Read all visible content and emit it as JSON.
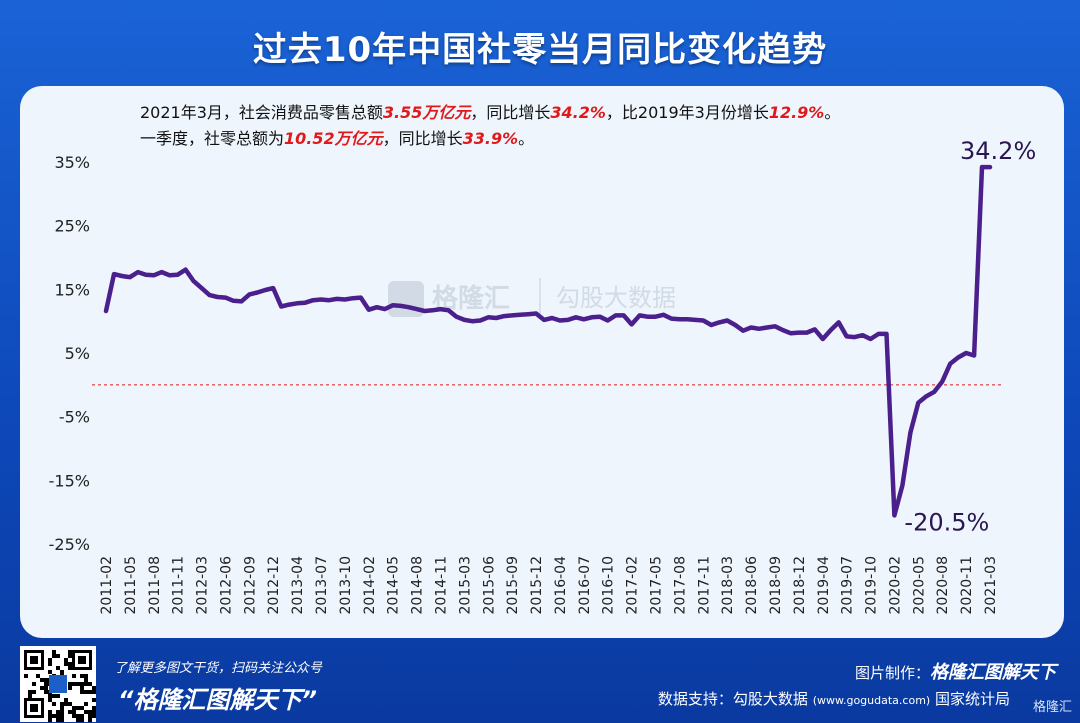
{
  "title": "过去10年中国社零当月同比变化趋势",
  "notes": {
    "line1": {
      "p1": "2021年3月，社会消费品零售总额",
      "v1": "3.55万亿元",
      "p2": "，同比增长",
      "v2": "34.2%",
      "p3": "，比2019年3月份增长",
      "v3": "12.9%",
      "p4": "。"
    },
    "line2": {
      "p1": "一季度，社零总额为",
      "v1": "10.52万亿元",
      "p2": "，同比增长",
      "v2": "33.9%",
      "p3": "。"
    }
  },
  "watermark": {
    "brand": "格隆汇",
    "partner": "勾股大数据"
  },
  "colors": {
    "line": "#4b1f8c",
    "highlight": "#e0191b",
    "zero_line": "#e0191b",
    "background": "#0d47b8"
  },
  "chart_data": {
    "type": "line",
    "title": "过去10年中国社零当月同比变化趋势",
    "xlabel": "",
    "ylabel": "",
    "ylim": [
      -25,
      35
    ],
    "y_ticks": [
      35,
      25,
      15,
      5,
      -5,
      -15,
      -25
    ],
    "y_tick_labels": [
      "35%",
      "25%",
      "15%",
      "5%",
      "-5%",
      "-15%",
      "-25%"
    ],
    "x_tick_labels": [
      "2011-02",
      "2011-05",
      "2011-08",
      "2011-11",
      "2012-03",
      "2012-06",
      "2012-09",
      "2012-12",
      "2013-04",
      "2013-07",
      "2013-10",
      "2014-02",
      "2014-05",
      "2014-08",
      "2014-11",
      "2015-03",
      "2015-06",
      "2015-09",
      "2015-12",
      "2016-04",
      "2016-07",
      "2016-10",
      "2017-02",
      "2017-05",
      "2017-08",
      "2017-11",
      "2018-03",
      "2018-06",
      "2018-09",
      "2018-12",
      "2019-04",
      "2019-07",
      "2019-10",
      "2020-02",
      "2020-05",
      "2020-08",
      "2020-11",
      "2021-03"
    ],
    "reference_line": 0,
    "grid": false,
    "series": [
      {
        "name": "",
        "values": [
          11.6,
          17.4,
          17.1,
          16.9,
          17.7,
          17.3,
          17.2,
          17.7,
          17.2,
          17.3,
          18.1,
          16.3,
          15.2,
          14.1,
          13.8,
          13.7,
          13.2,
          13.1,
          14.2,
          14.5,
          14.9,
          15.2,
          12.3,
          12.6,
          12.8,
          12.9,
          13.3,
          13.4,
          13.3,
          13.5,
          13.4,
          13.6,
          13.7,
          11.8,
          12.2,
          11.9,
          12.5,
          12.4,
          12.2,
          11.9,
          11.6,
          11.7,
          11.9,
          11.7,
          10.7,
          10.2,
          10.0,
          10.1,
          10.6,
          10.5,
          10.8,
          10.9,
          11.0,
          11.1,
          11.2,
          10.2,
          10.5,
          10.1,
          10.2,
          10.6,
          10.3,
          10.6,
          10.7,
          10.1,
          10.9,
          10.9,
          9.5,
          10.9,
          10.7,
          10.7,
          11.0,
          10.4,
          10.3,
          10.3,
          10.2,
          10.1,
          9.4,
          9.8,
          10.1,
          9.4,
          8.5,
          9.0,
          8.8,
          9.0,
          9.2,
          8.6,
          8.1,
          8.2,
          8.2,
          8.7,
          7.2,
          8.6,
          9.8,
          7.6,
          7.5,
          7.8,
          7.2,
          8.0,
          8.0,
          -20.5,
          -15.8,
          -7.5,
          -2.8,
          -1.8,
          -1.1,
          0.5,
          3.3,
          4.3,
          5.0,
          4.6,
          34.2,
          34.2
        ]
      }
    ],
    "annotations": [
      {
        "label": "34.2%",
        "value": 34.2,
        "at": "2021-03"
      },
      {
        "label": "-20.5%",
        "value": -20.5,
        "at": "2020-02"
      }
    ]
  },
  "footer": {
    "tagline": "了解更多图文干货，扫码关注公众号",
    "brand": "“格隆汇图解天下”",
    "credit_label": "图片制作：",
    "credit_name": "格隆汇图解天下",
    "source_label": "数据支持：勾股大数据",
    "source_url": "(www.gogudata.com)",
    "source_org": "国家统计局",
    "corner_logo": "格隆汇"
  }
}
